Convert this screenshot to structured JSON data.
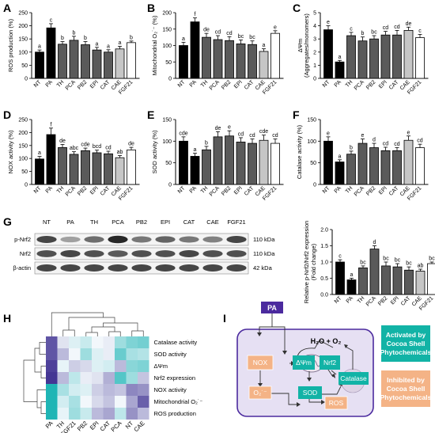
{
  "categories": [
    "NT",
    "PA",
    "TH",
    "PCA",
    "PB2",
    "EPI",
    "CAT",
    "CAE",
    "FGF21"
  ],
  "colors": {
    "NT": "#000000",
    "PA": "#000000",
    "TH": "#5a5a5a",
    "PCA": "#5a5a5a",
    "PB2": "#5a5a5a",
    "EPI": "#5a5a5a",
    "CAT": "#5a5a5a",
    "CAE": "#c6c6c6",
    "FGF21": "#ffffff"
  },
  "panels": {
    "A": {
      "label": "A",
      "ylabel": "ROS production (%)",
      "ymax": 250,
      "ticks": [
        0,
        50,
        100,
        150,
        200,
        250
      ],
      "values": [
        100,
        192,
        130,
        145,
        128,
        108,
        100,
        112,
        136
      ],
      "errors": [
        8,
        16,
        10,
        15,
        12,
        10,
        9,
        10,
        6
      ],
      "letters": [
        "a",
        "c",
        "b",
        "b",
        "b",
        "a",
        "a",
        "a",
        "b"
      ]
    },
    "B": {
      "label": "B",
      "ylabel": "Mitochondrial O₂˙⁻ (%)",
      "ymax": 200,
      "ticks": [
        0,
        50,
        100,
        150,
        200
      ],
      "values": [
        100,
        172,
        125,
        118,
        115,
        105,
        103,
        82,
        137
      ],
      "errors": [
        10,
        12,
        12,
        12,
        12,
        12,
        11,
        8,
        8
      ],
      "letters": [
        "a",
        "f",
        "de",
        "cd",
        "cd",
        "bc",
        "bc",
        "a",
        "e"
      ]
    },
    "C": {
      "label": "C",
      "ylabel": "ΔΨm (Aggregates/monomers)",
      "ymax": 5,
      "ticks": [
        0,
        1,
        2,
        3,
        4,
        5
      ],
      "values": [
        3.7,
        1.25,
        3.25,
        2.85,
        3.0,
        3.3,
        3.3,
        3.65,
        3.1
      ],
      "errors": [
        0.3,
        0.12,
        0.25,
        0.3,
        0.25,
        0.28,
        0.35,
        0.25,
        0.25
      ],
      "letters": [
        "e",
        "a",
        "c",
        "b",
        "bc",
        "cd",
        "cd",
        "de",
        "c"
      ]
    },
    "D": {
      "label": "D",
      "ylabel": "NOX activity (%)",
      "ymax": 250,
      "ticks": [
        0,
        50,
        100,
        150,
        200,
        250
      ],
      "values": [
        98,
        192,
        142,
        116,
        130,
        122,
        118,
        103,
        133
      ],
      "errors": [
        10,
        25,
        12,
        10,
        10,
        10,
        10,
        8,
        10
      ],
      "letters": [
        "a",
        "f",
        "de",
        "abc",
        "cde",
        "bcd",
        "cd",
        "ab",
        "de"
      ]
    },
    "E": {
      "label": "E",
      "ylabel": "SOD activity (%)",
      "ymax": 150,
      "ticks": [
        0,
        50,
        100,
        150
      ],
      "values": [
        100,
        65,
        80,
        110,
        112,
        98,
        95,
        102,
        95
      ],
      "errors": [
        10,
        7,
        8,
        12,
        12,
        10,
        10,
        12,
        10
      ],
      "letters": [
        "cde",
        "a",
        "b",
        "de",
        "e",
        "cd",
        "cd",
        "cde",
        "cd"
      ]
    },
    "F": {
      "label": "F",
      "ylabel": "Catalase activity (%)",
      "ymax": 150,
      "ticks": [
        0,
        50,
        100,
        150
      ],
      "values": [
        100,
        52,
        70,
        95,
        85,
        78,
        78,
        102,
        85
      ],
      "errors": [
        10,
        5,
        7,
        10,
        10,
        8,
        7,
        10,
        8
      ],
      "letters": [
        "e",
        "a",
        "b",
        "e",
        "d",
        "cd",
        "cd",
        "e",
        "cd"
      ]
    },
    "G": {
      "label": "G",
      "ylabel": "Relative p-Nrf2/Nrf2 expression (Fold change)",
      "ymax": 2.0,
      "ticks": [
        0.0,
        0.5,
        1.0,
        1.5,
        2.0
      ],
      "values": [
        1.0,
        0.45,
        0.82,
        1.4,
        0.88,
        0.85,
        0.75,
        0.72,
        0.95
      ],
      "errors": [
        0.07,
        0.05,
        0.06,
        0.1,
        0.12,
        0.1,
        0.1,
        0.06,
        0.05
      ],
      "letters": [
        "c",
        "a",
        "bc",
        "d",
        "bc",
        "bc",
        "bc",
        "ab",
        "bc"
      ]
    }
  },
  "blot": {
    "lanes": [
      "NT",
      "PA",
      "TH",
      "PCA",
      "PB2",
      "EPI",
      "CAT",
      "CAE",
      "FGF21"
    ],
    "rows": [
      {
        "name": "p-Nrf2",
        "kda": "110 kDa",
        "intensity": [
          0.8,
          0.35,
          0.6,
          0.95,
          0.55,
          0.65,
          0.55,
          0.5,
          0.8
        ]
      },
      {
        "name": "Nrf2",
        "kda": "110 kDa",
        "intensity": [
          0.75,
          0.8,
          0.75,
          0.7,
          0.75,
          0.75,
          0.8,
          0.75,
          0.75
        ]
      },
      {
        "name": "β-actin",
        "kda": "42 kDa",
        "intensity": [
          0.8,
          0.8,
          0.8,
          0.8,
          0.8,
          0.8,
          0.8,
          0.8,
          0.8
        ]
      }
    ]
  },
  "heatmap": {
    "label": "H",
    "columns": [
      "PA",
      "TH",
      "FGF21",
      "PB2",
      "EPI",
      "CAT",
      "PCA",
      "NT",
      "CAE"
    ],
    "rows": [
      "Catalase activity",
      "SOD activity",
      "ΔΨm",
      "Nrf2 expression",
      "NOX activity",
      "Mitochondrial O₂˙⁻",
      "ROS production"
    ],
    "values": [
      [
        -1.6,
        -0.2,
        0.2,
        0.4,
        0.0,
        -0.1,
        0.8,
        1.1,
        1.2
      ],
      [
        -1.6,
        -0.6,
        0.0,
        0.8,
        0.2,
        -0.1,
        1.3,
        0.7,
        0.6
      ],
      [
        -1.8,
        0.1,
        -0.4,
        -0.3,
        0.2,
        0.3,
        -0.6,
        1.0,
        1.1
      ],
      [
        -1.9,
        -0.6,
        0.5,
        -0.1,
        -0.2,
        -0.7,
        1.5,
        0.8,
        -0.5
      ],
      [
        2.0,
        0.7,
        0.3,
        0.2,
        -0.4,
        -0.6,
        -0.5,
        -1.1,
        -1.0
      ],
      [
        2.0,
        0.3,
        0.7,
        0.0,
        -0.3,
        -0.5,
        0.0,
        -0.8,
        -1.5
      ],
      [
        2.0,
        0.1,
        0.8,
        0.4,
        -0.6,
        -0.8,
        0.5,
        -1.0,
        -0.6
      ]
    ],
    "colors": {
      "low": "#3b2c8f",
      "mid": "#f2f7fb",
      "high": "#1fb5b5"
    }
  },
  "schematic": {
    "label": "I",
    "pa": "PA",
    "nox": "NOX",
    "dpsi": "ΔΨm",
    "nrf2": "Nrf2",
    "o2": "O₂˙⁻",
    "sod": "SOD",
    "ros": "ROS",
    "catalase": "Catalase",
    "h2o": "H₂O + O₂",
    "legend_activated": [
      "Activated by",
      "Cocoa Shell",
      "Phytochemicals"
    ],
    "legend_inhibited": [
      "Inhibited by",
      "Cocoa Shell",
      "Phytochemicals"
    ],
    "colors": {
      "purple": "#4b2a9e",
      "teal": "#12b3a6",
      "orange": "#f4b386",
      "bg": "#e6e0f3"
    }
  }
}
